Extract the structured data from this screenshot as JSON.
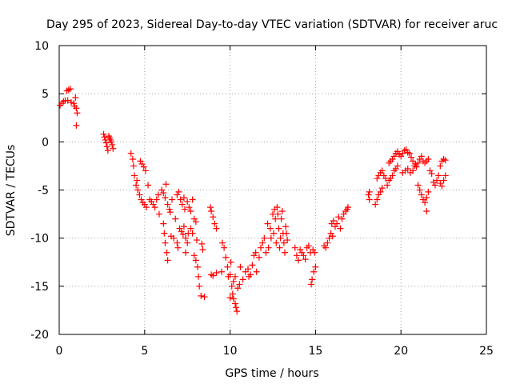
{
  "chart_data": {
    "type": "scatter",
    "title": "Day 295 of 2023, Sidereal Day-to-day VTEC variation (SDTVAR) for receiver aruc",
    "xlabel": "GPS time / hours",
    "ylabel": "SDTVAR / TECUs",
    "xlim": [
      0,
      25
    ],
    "ylim": [
      -20,
      10
    ],
    "xticks": [
      "0",
      "5",
      "10",
      "15",
      "20",
      "25"
    ],
    "yticks": [
      "10",
      "5",
      "0",
      "-5",
      "-10",
      "-15",
      "-20"
    ],
    "grid": true,
    "marker": "plus",
    "marker_color": "#ff0000",
    "series": [
      {
        "name": "SDTVAR",
        "points": [
          [
            0.05,
            3.8
          ],
          [
            0.15,
            4.0
          ],
          [
            0.25,
            4.2
          ],
          [
            0.35,
            4.3
          ],
          [
            0.45,
            5.3
          ],
          [
            0.55,
            5.4
          ],
          [
            0.65,
            5.5
          ],
          [
            0.5,
            4.3
          ],
          [
            0.7,
            4.1
          ],
          [
            0.85,
            4.0
          ],
          [
            0.9,
            3.7
          ],
          [
            0.95,
            4.6
          ],
          [
            1.0,
            3.5
          ],
          [
            1.05,
            3.0
          ],
          [
            1.0,
            1.7
          ],
          [
            2.6,
            0.8
          ],
          [
            2.65,
            0.5
          ],
          [
            2.7,
            0.2
          ],
          [
            2.75,
            -0.1
          ],
          [
            2.8,
            -0.5
          ],
          [
            2.85,
            -0.9
          ],
          [
            2.9,
            0.6
          ],
          [
            2.95,
            0.4
          ],
          [
            3.0,
            0.2
          ],
          [
            3.05,
            0.0
          ],
          [
            3.1,
            -0.3
          ],
          [
            3.15,
            -0.7
          ],
          [
            4.2,
            -1.2
          ],
          [
            4.3,
            -1.8
          ],
          [
            4.35,
            -2.5
          ],
          [
            4.4,
            -3.5
          ],
          [
            4.5,
            -4.5
          ],
          [
            4.6,
            -5.0
          ],
          [
            4.55,
            -4.0
          ],
          [
            4.7,
            -5.5
          ],
          [
            4.75,
            -2.0
          ],
          [
            4.85,
            -2.3
          ],
          [
            4.95,
            -2.6
          ],
          [
            5.05,
            -3.0
          ],
          [
            4.8,
            -6.0
          ],
          [
            4.9,
            -6.3
          ],
          [
            5.0,
            -6.5
          ],
          [
            5.1,
            -6.8
          ],
          [
            5.2,
            -4.5
          ],
          [
            5.3,
            -6.0
          ],
          [
            5.4,
            -6.2
          ],
          [
            5.5,
            -6.5
          ],
          [
            5.6,
            -6.8
          ],
          [
            5.7,
            -6.0
          ],
          [
            5.8,
            -5.5
          ],
          [
            5.85,
            -7.5
          ],
          [
            6.0,
            -5.0
          ],
          [
            6.1,
            -5.3
          ],
          [
            6.2,
            -5.8
          ],
          [
            6.25,
            -4.4
          ],
          [
            6.35,
            -6.5
          ],
          [
            6.45,
            -7.0
          ],
          [
            6.5,
            -7.3
          ],
          [
            6.6,
            -6.0
          ],
          [
            6.1,
            -8.5
          ],
          [
            6.15,
            -9.5
          ],
          [
            6.2,
            -10.5
          ],
          [
            6.3,
            -11.5
          ],
          [
            6.35,
            -12.3
          ],
          [
            6.55,
            -9.8
          ],
          [
            6.7,
            -10.0
          ],
          [
            6.8,
            -8.0
          ],
          [
            6.9,
            -5.5
          ],
          [
            7.0,
            -5.2
          ],
          [
            7.1,
            -6.0
          ],
          [
            7.2,
            -6.5
          ],
          [
            7.3,
            -5.8
          ],
          [
            7.35,
            -7.0
          ],
          [
            7.5,
            -6.2
          ],
          [
            7.6,
            -6.8
          ],
          [
            7.7,
            -7.2
          ],
          [
            7.8,
            -6.0
          ],
          [
            7.05,
            -9.0
          ],
          [
            7.15,
            -9.3
          ],
          [
            7.25,
            -9.6
          ],
          [
            7.3,
            -8.8
          ],
          [
            7.4,
            -10.0
          ],
          [
            7.5,
            -10.5
          ],
          [
            7.55,
            -9.5
          ],
          [
            7.7,
            -9.0
          ],
          [
            7.8,
            -9.5
          ],
          [
            7.9,
            -8.0
          ],
          [
            8.0,
            -8.3
          ],
          [
            6.9,
            -10.5
          ],
          [
            6.95,
            -11.0
          ],
          [
            7.4,
            -11.5
          ],
          [
            7.9,
            -11.8
          ],
          [
            8.0,
            -12.3
          ],
          [
            8.1,
            -13.0
          ],
          [
            8.15,
            -14.0
          ],
          [
            8.2,
            -15.0
          ],
          [
            8.3,
            -16.0
          ],
          [
            8.5,
            -16.1
          ],
          [
            8.05,
            -10.2
          ],
          [
            8.35,
            -10.6
          ],
          [
            8.4,
            -11.2
          ],
          [
            8.85,
            -6.8
          ],
          [
            8.9,
            -7.2
          ],
          [
            9.0,
            -7.8
          ],
          [
            9.1,
            -8.5
          ],
          [
            9.2,
            -9.0
          ],
          [
            8.9,
            -13.8
          ],
          [
            9.0,
            -13.9
          ],
          [
            9.2,
            -13.6
          ],
          [
            9.5,
            -13.5
          ],
          [
            9.55,
            -10.5
          ],
          [
            9.65,
            -11.0
          ],
          [
            9.75,
            -12.0
          ],
          [
            9.85,
            -13.0
          ],
          [
            9.9,
            -14.0
          ],
          [
            10.0,
            -13.8
          ],
          [
            10.05,
            -12.5
          ],
          [
            10.1,
            -15.0
          ],
          [
            10.15,
            -15.8
          ],
          [
            10.2,
            -16.3
          ],
          [
            10.3,
            -16.8
          ],
          [
            10.35,
            -17.2
          ],
          [
            10.4,
            -17.6
          ],
          [
            10.0,
            -16.2
          ],
          [
            10.2,
            -14.5
          ],
          [
            10.3,
            -14.0
          ],
          [
            10.45,
            -15.2
          ],
          [
            10.55,
            -14.8
          ],
          [
            10.6,
            -13.0
          ],
          [
            10.75,
            -14.3
          ],
          [
            10.9,
            -13.5
          ],
          [
            11.05,
            -13.2
          ],
          [
            11.1,
            -14.0
          ],
          [
            11.2,
            -13.8
          ],
          [
            11.3,
            -12.8
          ],
          [
            11.4,
            -11.8
          ],
          [
            11.5,
            -11.5
          ],
          [
            11.55,
            -13.5
          ],
          [
            11.7,
            -12.0
          ],
          [
            11.8,
            -11.0
          ],
          [
            11.9,
            -10.5
          ],
          [
            12.0,
            -10.0
          ],
          [
            12.1,
            -11.5
          ],
          [
            12.2,
            -8.5
          ],
          [
            12.25,
            -11.0
          ],
          [
            12.35,
            -9.0
          ],
          [
            12.4,
            -10.0
          ],
          [
            12.5,
            -7.5
          ],
          [
            12.55,
            -9.5
          ],
          [
            12.6,
            -7.0
          ],
          [
            12.65,
            -8.0
          ],
          [
            12.7,
            -10.5
          ],
          [
            12.75,
            -6.8
          ],
          [
            12.8,
            -7.5
          ],
          [
            12.85,
            -9.0
          ],
          [
            12.9,
            -11.0
          ],
          [
            12.95,
            -10.0
          ],
          [
            13.0,
            -8.0
          ],
          [
            13.05,
            -7.2
          ],
          [
            13.1,
            -9.5
          ],
          [
            13.15,
            -10.5
          ],
          [
            13.2,
            -11.5
          ],
          [
            13.25,
            -8.8
          ],
          [
            13.3,
            -9.5
          ],
          [
            13.35,
            -10.2
          ],
          [
            13.8,
            -11.0
          ],
          [
            13.9,
            -11.8
          ],
          [
            14.0,
            -12.3
          ],
          [
            14.1,
            -11.2
          ],
          [
            14.2,
            -11.5
          ],
          [
            14.3,
            -11.8
          ],
          [
            14.4,
            -12.2
          ],
          [
            14.5,
            -11.0
          ],
          [
            14.6,
            -10.8
          ],
          [
            14.7,
            -11.5
          ],
          [
            14.75,
            -14.8
          ],
          [
            14.8,
            -14.3
          ],
          [
            14.9,
            -13.5
          ],
          [
            15.0,
            -13.0
          ],
          [
            14.85,
            -11.2
          ],
          [
            14.95,
            -11.5
          ],
          [
            15.5,
            -10.8
          ],
          [
            15.6,
            -11.0
          ],
          [
            15.7,
            -10.5
          ],
          [
            15.8,
            -10.0
          ],
          [
            15.9,
            -9.5
          ],
          [
            16.0,
            -9.8
          ],
          [
            15.95,
            -8.5
          ],
          [
            16.05,
            -8.2
          ],
          [
            16.15,
            -8.8
          ],
          [
            16.25,
            -8.5
          ],
          [
            16.35,
            -7.8
          ],
          [
            16.45,
            -9.0
          ],
          [
            16.55,
            -8.0
          ],
          [
            16.65,
            -7.5
          ],
          [
            16.75,
            -7.2
          ],
          [
            16.85,
            -7.0
          ],
          [
            16.9,
            -6.8
          ],
          [
            18.1,
            -5.5
          ],
          [
            18.15,
            -6.0
          ],
          [
            18.15,
            -5.2
          ],
          [
            18.5,
            -6.5
          ],
          [
            18.6,
            -6.0
          ],
          [
            18.7,
            -5.5
          ],
          [
            18.8,
            -5.2
          ],
          [
            18.9,
            -4.8
          ],
          [
            18.6,
            -3.8
          ],
          [
            18.7,
            -3.5
          ],
          [
            18.8,
            -3.2
          ],
          [
            18.9,
            -3.0
          ],
          [
            19.0,
            -3.5
          ],
          [
            19.1,
            -3.8
          ],
          [
            19.2,
            -4.5
          ],
          [
            19.3,
            -4.0
          ],
          [
            19.4,
            -3.8
          ],
          [
            19.5,
            -3.5
          ],
          [
            19.6,
            -3.0
          ],
          [
            19.7,
            -2.8
          ],
          [
            19.8,
            -2.5
          ],
          [
            19.3,
            -2.2
          ],
          [
            19.4,
            -2.0
          ],
          [
            19.5,
            -1.8
          ],
          [
            19.6,
            -1.5
          ],
          [
            19.7,
            -1.2
          ],
          [
            19.8,
            -1.0
          ],
          [
            19.9,
            -1.3
          ],
          [
            20.0,
            -1.5
          ],
          [
            20.1,
            -1.2
          ],
          [
            20.2,
            -0.9
          ],
          [
            20.3,
            -0.8
          ],
          [
            20.4,
            -1.1
          ],
          [
            20.5,
            -1.2
          ],
          [
            20.6,
            -1.6
          ],
          [
            20.7,
            -2.0
          ],
          [
            20.8,
            -2.5
          ],
          [
            20.1,
            -3.2
          ],
          [
            20.25,
            -3.0
          ],
          [
            20.4,
            -2.8
          ],
          [
            20.55,
            -3.2
          ],
          [
            20.7,
            -3.0
          ],
          [
            20.85,
            -2.3
          ],
          [
            20.9,
            -2.6
          ],
          [
            21.0,
            -2.2
          ],
          [
            21.1,
            -1.8
          ],
          [
            21.2,
            -1.5
          ],
          [
            21.3,
            -2.0
          ],
          [
            21.4,
            -2.2
          ],
          [
            21.5,
            -2.0
          ],
          [
            21.6,
            -1.8
          ],
          [
            21.0,
            -4.5
          ],
          [
            21.1,
            -5.0
          ],
          [
            21.2,
            -5.5
          ],
          [
            21.3,
            -6.0
          ],
          [
            21.4,
            -6.3
          ],
          [
            21.5,
            -5.8
          ],
          [
            21.6,
            -5.2
          ],
          [
            21.5,
            -7.2
          ],
          [
            21.7,
            -3.0
          ],
          [
            21.8,
            -3.3
          ],
          [
            21.9,
            -4.2
          ],
          [
            22.0,
            -4.5
          ],
          [
            22.1,
            -4.0
          ],
          [
            22.2,
            -3.5
          ],
          [
            22.3,
            -2.5
          ],
          [
            22.4,
            -2.0
          ],
          [
            22.5,
            -1.8
          ],
          [
            22.6,
            -1.9
          ],
          [
            22.3,
            -4.3
          ],
          [
            22.4,
            -4.6
          ],
          [
            22.5,
            -4.0
          ],
          [
            22.6,
            -3.5
          ]
        ]
      }
    ]
  }
}
